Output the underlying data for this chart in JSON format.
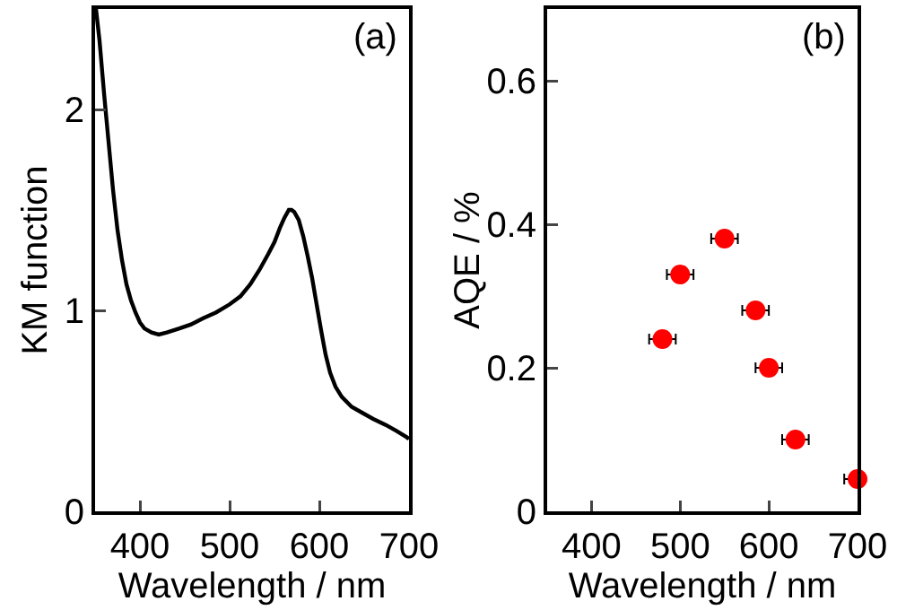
{
  "chart_data": [
    {
      "type": "line",
      "xlabel": "Wavelength / nm",
      "ylabel": "KM function",
      "annotations": [
        "(a)"
      ],
      "marker": "none",
      "line_style": "solid",
      "grid": false,
      "xlim": [
        350,
        700
      ],
      "xticks": [
        400,
        500,
        600,
        700
      ],
      "ylim": [
        0,
        2.5
      ],
      "yticks": [
        0,
        1,
        2
      ],
      "series": [
        {
          "color": "#000000",
          "x": [
            351,
            355,
            360,
            365,
            370,
            375,
            380,
            385,
            390,
            395,
            400,
            405,
            413,
            421,
            430,
            444,
            457,
            470,
            485,
            500,
            512,
            523,
            533,
            543,
            550,
            556,
            561,
            566,
            569,
            572,
            577,
            582,
            587,
            592,
            597,
            602,
            607,
            612,
            618,
            625,
            636,
            648,
            660,
            674,
            686,
            697,
            700
          ],
          "values": [
            2.5,
            2.34,
            2.08,
            1.84,
            1.6,
            1.4,
            1.25,
            1.13,
            1.05,
            0.99,
            0.94,
            0.91,
            0.89,
            0.88,
            0.89,
            0.91,
            0.93,
            0.96,
            0.99,
            1.03,
            1.07,
            1.13,
            1.2,
            1.28,
            1.34,
            1.41,
            1.46,
            1.5,
            1.5,
            1.49,
            1.45,
            1.37,
            1.27,
            1.16,
            1.03,
            0.9,
            0.78,
            0.69,
            0.62,
            0.57,
            0.52,
            0.49,
            0.46,
            0.43,
            0.4,
            0.37,
            0.36
          ]
        }
      ]
    },
    {
      "type": "scatter",
      "xlabel": "Wavelength / nm",
      "ylabel": "AQE / %",
      "annotations": [
        "(b)"
      ],
      "marker": "circle",
      "grid": false,
      "xlim": [
        350,
        700
      ],
      "xticks": [
        400,
        500,
        600,
        700
      ],
      "ylim": [
        0,
        0.7
      ],
      "yticks": [
        0,
        0.2,
        0.4,
        0.6
      ],
      "series": [
        {
          "color": "#ff0000",
          "x": [
            480,
            500,
            550,
            585,
            600,
            630,
            700
          ],
          "values": [
            0.24,
            0.33,
            0.38,
            0.28,
            0.2,
            0.1,
            0.045
          ],
          "xerrors": [
            15,
            15,
            15,
            15,
            15,
            15,
            15
          ]
        }
      ]
    }
  ]
}
